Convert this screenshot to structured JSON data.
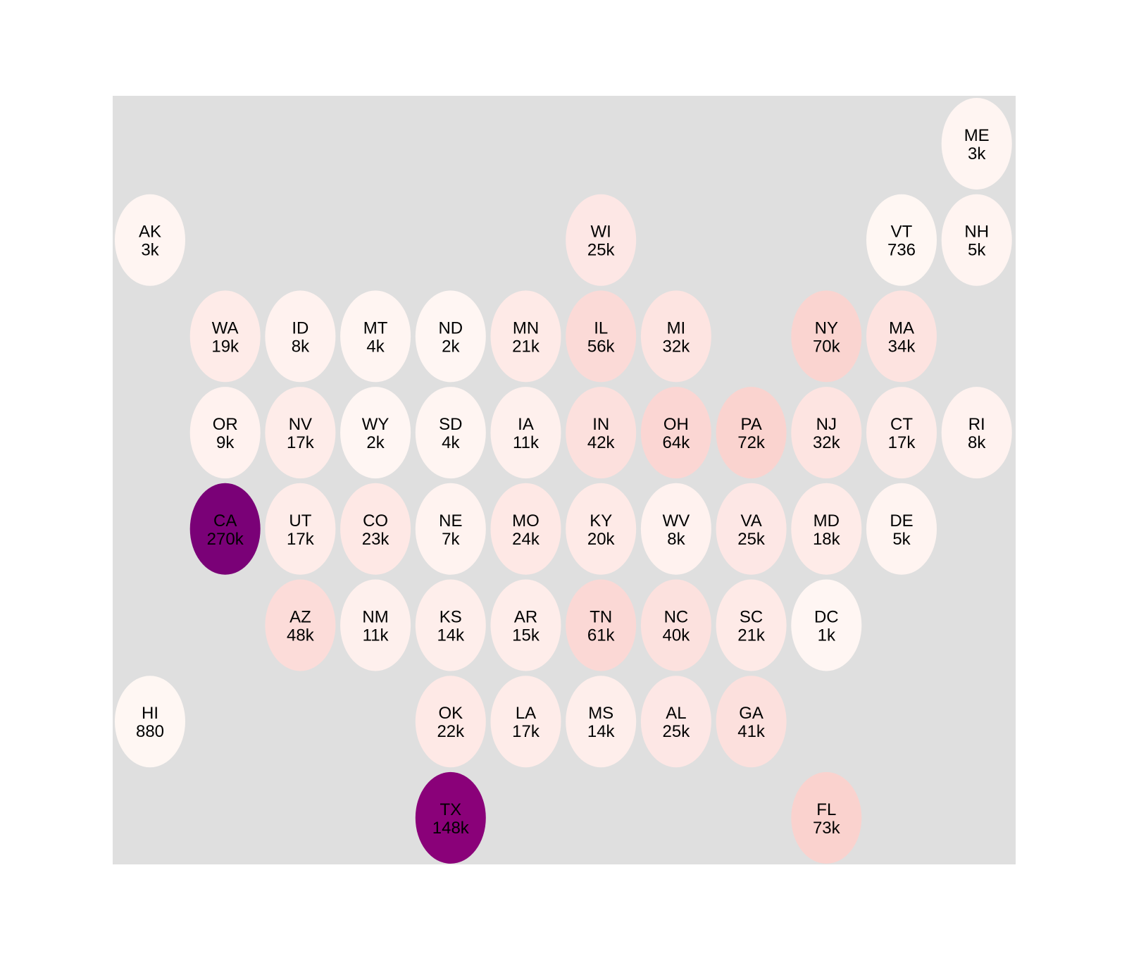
{
  "chart_data": {
    "type": "heatmap",
    "title": "",
    "xlabel": "",
    "ylabel": "",
    "grid": false,
    "legend": "none",
    "colors": {
      "panel_background": "#dfdfdf",
      "page_background": "#ffffff",
      "scale_low": "#fff7f3",
      "scale_mid": "#fbd4d0",
      "scale_high": "#7a0177"
    },
    "grid_rows": 9,
    "grid_cols": 12,
    "tiles": [
      {
        "state": "ME",
        "label": "3k",
        "value": 3000,
        "row": 0,
        "col": 11,
        "color": "#fff5f2"
      },
      {
        "state": "AK",
        "label": "3k",
        "value": 3000,
        "row": 1,
        "col": 0,
        "color": "#fff5f2"
      },
      {
        "state": "WI",
        "label": "25k",
        "value": 25000,
        "row": 1,
        "col": 6,
        "color": "#fde7e5"
      },
      {
        "state": "VT",
        "label": "736",
        "value": 736,
        "row": 1,
        "col": 10,
        "color": "#fff7f3"
      },
      {
        "state": "NH",
        "label": "5k",
        "value": 5000,
        "row": 1,
        "col": 11,
        "color": "#fff4f1"
      },
      {
        "state": "WA",
        "label": "19k",
        "value": 19000,
        "row": 2,
        "col": 1,
        "color": "#feebe8"
      },
      {
        "state": "ID",
        "label": "8k",
        "value": 8000,
        "row": 2,
        "col": 2,
        "color": "#fff2ef"
      },
      {
        "state": "MT",
        "label": "4k",
        "value": 4000,
        "row": 2,
        "col": 3,
        "color": "#fff5f2"
      },
      {
        "state": "ND",
        "label": "2k",
        "value": 2000,
        "row": 2,
        "col": 4,
        "color": "#fff6f3"
      },
      {
        "state": "MN",
        "label": "21k",
        "value": 21000,
        "row": 2,
        "col": 5,
        "color": "#feeae7"
      },
      {
        "state": "IL",
        "label": "56k",
        "value": 56000,
        "row": 2,
        "col": 6,
        "color": "#fbdad7"
      },
      {
        "state": "MI",
        "label": "32k",
        "value": 32000,
        "row": 2,
        "col": 7,
        "color": "#fde4e1"
      },
      {
        "state": "NY",
        "label": "70k",
        "value": 70000,
        "row": 2,
        "col": 9,
        "color": "#fad4d0"
      },
      {
        "state": "MA",
        "label": "34k",
        "value": 34000,
        "row": 2,
        "col": 10,
        "color": "#fde3e0"
      },
      {
        "state": "OR",
        "label": "9k",
        "value": 9000,
        "row": 3,
        "col": 1,
        "color": "#fff2ef"
      },
      {
        "state": "NV",
        "label": "17k",
        "value": 17000,
        "row": 3,
        "col": 2,
        "color": "#feece9"
      },
      {
        "state": "WY",
        "label": "2k",
        "value": 2000,
        "row": 3,
        "col": 3,
        "color": "#fff6f3"
      },
      {
        "state": "SD",
        "label": "4k",
        "value": 4000,
        "row": 3,
        "col": 4,
        "color": "#fff5f2"
      },
      {
        "state": "IA",
        "label": "11k",
        "value": 11000,
        "row": 3,
        "col": 5,
        "color": "#fef0ed"
      },
      {
        "state": "IN",
        "label": "42k",
        "value": 42000,
        "row": 3,
        "col": 6,
        "color": "#fce0dd"
      },
      {
        "state": "OH",
        "label": "64k",
        "value": 64000,
        "row": 3,
        "col": 7,
        "color": "#fbd6d3"
      },
      {
        "state": "PA",
        "label": "72k",
        "value": 72000,
        "row": 3,
        "col": 8,
        "color": "#fad3cf"
      },
      {
        "state": "NJ",
        "label": "32k",
        "value": 32000,
        "row": 3,
        "col": 9,
        "color": "#fde4e1"
      },
      {
        "state": "CT",
        "label": "17k",
        "value": 17000,
        "row": 3,
        "col": 10,
        "color": "#feece9"
      },
      {
        "state": "RI",
        "label": "8k",
        "value": 8000,
        "row": 3,
        "col": 11,
        "color": "#fff2ef"
      },
      {
        "state": "CA",
        "label": "270k",
        "value": 270000,
        "row": 4,
        "col": 1,
        "color": "#7a0177"
      },
      {
        "state": "UT",
        "label": "17k",
        "value": 17000,
        "row": 4,
        "col": 2,
        "color": "#feece9"
      },
      {
        "state": "CO",
        "label": "23k",
        "value": 23000,
        "row": 4,
        "col": 3,
        "color": "#fee8e5"
      },
      {
        "state": "NE",
        "label": "7k",
        "value": 7000,
        "row": 4,
        "col": 4,
        "color": "#fff3f0"
      },
      {
        "state": "MO",
        "label": "24k",
        "value": 24000,
        "row": 4,
        "col": 5,
        "color": "#fee8e5"
      },
      {
        "state": "KY",
        "label": "20k",
        "value": 20000,
        "row": 4,
        "col": 6,
        "color": "#feeae7"
      },
      {
        "state": "WV",
        "label": "8k",
        "value": 8000,
        "row": 4,
        "col": 7,
        "color": "#fff2ef"
      },
      {
        "state": "VA",
        "label": "25k",
        "value": 25000,
        "row": 4,
        "col": 8,
        "color": "#fde7e5"
      },
      {
        "state": "MD",
        "label": "18k",
        "value": 18000,
        "row": 4,
        "col": 9,
        "color": "#feebe8"
      },
      {
        "state": "DE",
        "label": "5k",
        "value": 5000,
        "row": 4,
        "col": 10,
        "color": "#fff4f1"
      },
      {
        "state": "AZ",
        "label": "48k",
        "value": 48000,
        "row": 5,
        "col": 2,
        "color": "#fcdcd9"
      },
      {
        "state": "NM",
        "label": "11k",
        "value": 11000,
        "row": 5,
        "col": 3,
        "color": "#fef0ed"
      },
      {
        "state": "KS",
        "label": "14k",
        "value": 14000,
        "row": 5,
        "col": 4,
        "color": "#feeeeb"
      },
      {
        "state": "AR",
        "label": "15k",
        "value": 15000,
        "row": 5,
        "col": 5,
        "color": "#feedea"
      },
      {
        "state": "TN",
        "label": "61k",
        "value": 61000,
        "row": 5,
        "col": 6,
        "color": "#fbd8d5"
      },
      {
        "state": "NC",
        "label": "40k",
        "value": 40000,
        "row": 5,
        "col": 7,
        "color": "#fce1de"
      },
      {
        "state": "SC",
        "label": "21k",
        "value": 21000,
        "row": 5,
        "col": 8,
        "color": "#feeae7"
      },
      {
        "state": "DC",
        "label": "1k",
        "value": 1000,
        "row": 5,
        "col": 9,
        "color": "#fff6f3"
      },
      {
        "state": "HI",
        "label": "880",
        "value": 880,
        "row": 6,
        "col": 0,
        "color": "#fff7f3"
      },
      {
        "state": "OK",
        "label": "22k",
        "value": 22000,
        "row": 6,
        "col": 4,
        "color": "#fee9e6"
      },
      {
        "state": "LA",
        "label": "17k",
        "value": 17000,
        "row": 6,
        "col": 5,
        "color": "#feece9"
      },
      {
        "state": "MS",
        "label": "14k",
        "value": 14000,
        "row": 6,
        "col": 6,
        "color": "#feeeeb"
      },
      {
        "state": "AL",
        "label": "25k",
        "value": 25000,
        "row": 6,
        "col": 7,
        "color": "#fde7e5"
      },
      {
        "state": "GA",
        "label": "41k",
        "value": 41000,
        "row": 6,
        "col": 8,
        "color": "#fce0dd"
      },
      {
        "state": "TX",
        "label": "148k",
        "value": 148000,
        "row": 7,
        "col": 4,
        "color": "#8a0179"
      },
      {
        "state": "FL",
        "label": "73k",
        "value": 73000,
        "row": 7,
        "col": 9,
        "color": "#fad2ce"
      }
    ]
  }
}
